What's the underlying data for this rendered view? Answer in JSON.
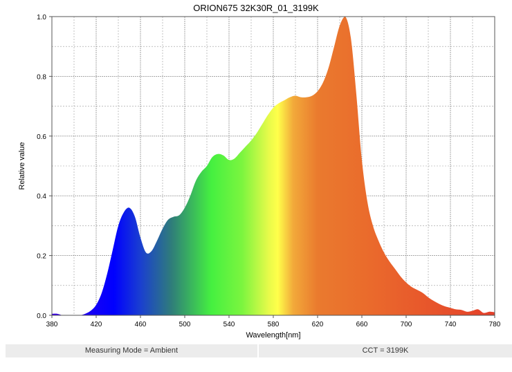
{
  "chart_data": {
    "type": "area",
    "title": "ORION675 32K30R_01_3199K",
    "xlabel": "Wavelength[nm]",
    "ylabel": "Relative value",
    "xlim": [
      380,
      780
    ],
    "ylim": [
      0,
      1.0
    ],
    "xticks": [
      "380",
      "420",
      "460",
      "500",
      "540",
      "580",
      "620",
      "660",
      "700",
      "740",
      "780"
    ],
    "yticks": [
      "0.0",
      "0.2",
      "0.4",
      "0.6",
      "0.8",
      "1.0"
    ],
    "grid": true,
    "fill": "visible-spectrum-gradient",
    "x": [
      380,
      385,
      390,
      395,
      400,
      405,
      410,
      415,
      420,
      425,
      430,
      435,
      440,
      445,
      450,
      455,
      460,
      465,
      470,
      475,
      480,
      485,
      490,
      495,
      500,
      505,
      510,
      515,
      520,
      525,
      530,
      535,
      540,
      545,
      550,
      555,
      560,
      565,
      570,
      575,
      580,
      585,
      590,
      595,
      600,
      605,
      610,
      615,
      620,
      625,
      630,
      635,
      640,
      645,
      650,
      655,
      660,
      665,
      670,
      675,
      680,
      685,
      690,
      695,
      700,
      705,
      710,
      715,
      720,
      725,
      730,
      735,
      740,
      745,
      750,
      755,
      760,
      765,
      770,
      775,
      780
    ],
    "y": [
      0.005,
      0.005,
      0.0,
      0.0,
      0.0,
      0.0,
      0.005,
      0.015,
      0.035,
      0.075,
      0.14,
      0.22,
      0.3,
      0.345,
      0.36,
      0.33,
      0.26,
      0.21,
      0.215,
      0.25,
      0.29,
      0.32,
      0.33,
      0.335,
      0.36,
      0.4,
      0.45,
      0.48,
      0.5,
      0.53,
      0.54,
      0.535,
      0.52,
      0.525,
      0.545,
      0.565,
      0.585,
      0.61,
      0.64,
      0.67,
      0.695,
      0.71,
      0.72,
      0.73,
      0.735,
      0.73,
      0.73,
      0.735,
      0.75,
      0.78,
      0.83,
      0.9,
      0.97,
      1.0,
      0.93,
      0.74,
      0.52,
      0.38,
      0.3,
      0.25,
      0.21,
      0.18,
      0.155,
      0.13,
      0.11,
      0.095,
      0.085,
      0.075,
      0.06,
      0.048,
      0.038,
      0.03,
      0.025,
      0.02,
      0.018,
      0.012,
      0.015,
      0.02,
      0.008,
      0.012,
      0.01
    ],
    "colors": {
      "violet": "#3b00e6",
      "blue": "#0000ff",
      "teal": "#2f7d7a",
      "green": "#45f040",
      "yellow": "#ffff4a",
      "orange": "#ea7a2e",
      "red": "#e43f2a",
      "grid": "#9a9a9a"
    }
  },
  "footer": {
    "left": "Measuring Mode = Ambient",
    "right": "CCT = 3199K"
  }
}
